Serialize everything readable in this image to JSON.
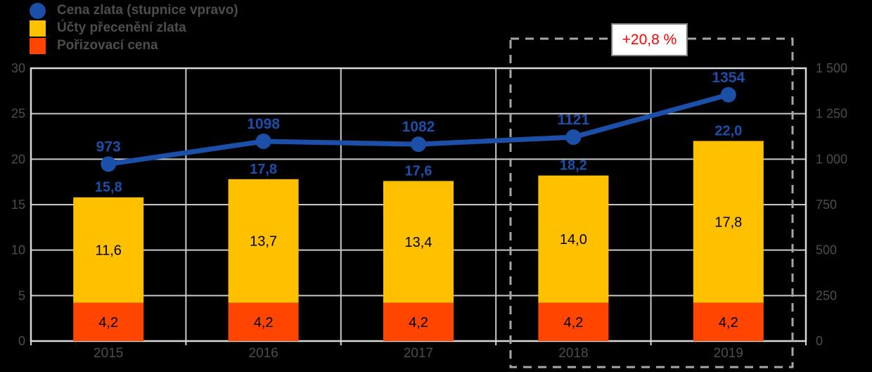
{
  "legend": {
    "items": [
      {
        "label": "Cena zlata (stupnice vpravo)",
        "marker": "circle",
        "color": "#1C4FA8"
      },
      {
        "label": "Účty přecenění zlata",
        "marker": "square",
        "color": "#FFC000"
      },
      {
        "label": "Pořizovací cena",
        "marker": "square",
        "color": "#FF4500"
      }
    ]
  },
  "annotation": {
    "label": "+20,8 %",
    "text_color": "#FF0000",
    "highlighted_categories": [
      "2018",
      "2019"
    ]
  },
  "chart_data": {
    "type": "combo: stacked bar + line",
    "categories": [
      "2015",
      "2016",
      "2017",
      "2018",
      "2019"
    ],
    "series": [
      {
        "name": "Pořizovací cena",
        "type": "bar",
        "stack": "total",
        "axis": "left",
        "color": "#FF4500",
        "values": [
          4.2,
          4.2,
          4.2,
          4.2,
          4.2
        ],
        "labels": [
          "4,2",
          "4,2",
          "4,2",
          "4,2",
          "4,2"
        ]
      },
      {
        "name": "Účty přecenění zlata",
        "type": "bar",
        "stack": "total",
        "axis": "left",
        "color": "#FFC000",
        "values": [
          11.6,
          13.7,
          13.4,
          14.0,
          17.8
        ],
        "labels": [
          "11,6",
          "13,7",
          "13,4",
          "14,0",
          "17,8"
        ]
      },
      {
        "name": "Cena zlata (stupnice vpravo)",
        "type": "line",
        "axis": "right",
        "color": "#1C4FA8",
        "values": [
          973,
          1098,
          1082,
          1121,
          1354
        ],
        "labels": [
          "973",
          "1098",
          "1082",
          "1121",
          "1354"
        ]
      }
    ],
    "stack_totals": {
      "values": [
        15.8,
        17.8,
        17.6,
        18.2,
        22.0
      ],
      "labels": [
        "15,8",
        "17,8",
        "17,6",
        "18,2",
        "22,0"
      ]
    },
    "left_axis": {
      "min": 0,
      "max": 30,
      "step": 5,
      "tick_labels": [
        "0",
        "5",
        "10",
        "15",
        "20",
        "25",
        "30"
      ]
    },
    "right_axis": {
      "min": 0,
      "max": 1500,
      "step": 250,
      "tick_labels": [
        "0",
        "250",
        "500",
        "750",
        "1 000",
        "1 250",
        "1 500"
      ]
    },
    "grid": true,
    "legend_position": "top-left",
    "colors": {
      "grid": "#C9C9C9",
      "plot_border": "#D9D9D9",
      "axis_text": "#4d4d4d",
      "value_label_blue": "#1C4FA8",
      "inner_label": "#000000",
      "dashed_highlight": "#A6A6A6",
      "background": "#000000"
    }
  }
}
